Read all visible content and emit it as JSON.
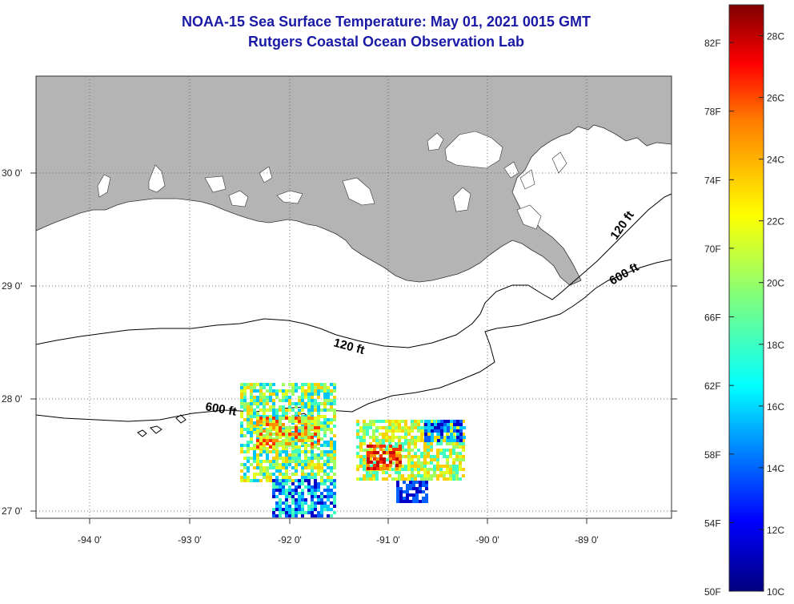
{
  "title": {
    "line1": "NOAA-15 Sea Surface Temperature:  May 01, 2021 0015 GMT",
    "line2": "Rutgers Coastal Ocean Observation Lab"
  },
  "map": {
    "lon_ticks": [
      "-94 0'",
      "-93 0'",
      "-92 0'",
      "-91 0'",
      "-90 0'",
      "-89 0'"
    ],
    "lat_ticks": [
      "30 0'",
      "29 0'",
      "28 0'",
      "27 0'"
    ],
    "contour_labels": [
      "120 ft",
      "600 ft",
      "120 ft",
      "600 ft"
    ],
    "colors": {
      "land": "#b4b4b4",
      "ocean": "#ffffff",
      "frame": "#444444"
    }
  },
  "colorbar": {
    "fahrenheit": [
      "82F",
      "78F",
      "74F",
      "70F",
      "66F",
      "62F",
      "58F",
      "54F",
      "50F"
    ],
    "celsius": [
      "28C",
      "26C",
      "24C",
      "22C",
      "20C",
      "18C",
      "16C",
      "14C",
      "12C",
      "10C"
    ],
    "range_c": [
      10,
      29
    ],
    "colors": [
      "#00007f",
      "#0000ff",
      "#007fff",
      "#00ffff",
      "#7fff7f",
      "#ffff00",
      "#ff7f00",
      "#ff0000",
      "#7f0000"
    ]
  }
}
